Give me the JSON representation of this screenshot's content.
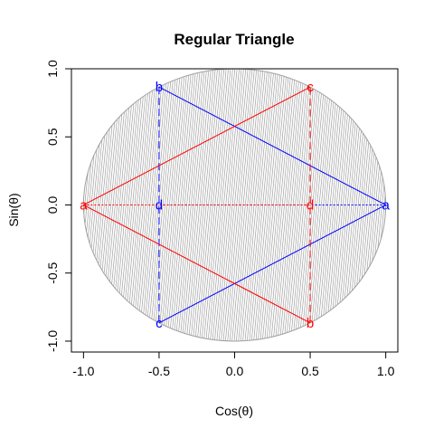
{
  "chart_data": {
    "type": "scatter",
    "title": "Regular Triangle",
    "xlabel": "Cos(θ)",
    "ylabel": "Sin(θ)",
    "xlim": [
      -1.08,
      1.08
    ],
    "ylim": [
      -1.08,
      1.0
    ],
    "xticks": [
      -1.0,
      -0.5,
      0.0,
      0.5,
      1.0
    ],
    "xtick_labels": [
      "-1.0",
      "-0.5",
      "0.0",
      "0.5",
      "1.0"
    ],
    "yticks": [
      -1.0,
      -0.5,
      0.0,
      0.5,
      1.0
    ],
    "ytick_labels": [
      "-1.0",
      "-0.5",
      "0.0",
      "0.5",
      "1.0"
    ],
    "grid": false,
    "unit_circle": {
      "center": [
        0,
        0
      ],
      "radius": 1,
      "fill": "hatched",
      "color": "#a0a0a0"
    },
    "series": [
      {
        "color": "#0000ff",
        "points": [
          {
            "label": "a",
            "x": 1.0,
            "y": 0.0
          },
          {
            "label": "b",
            "x": -0.5,
            "y": 0.866
          },
          {
            "label": "c",
            "x": -0.5,
            "y": -0.866
          },
          {
            "label": "d",
            "x": -0.5,
            "y": 0.0
          }
        ]
      },
      {
        "color": "#ff0000",
        "points": [
          {
            "label": "a",
            "x": -1.0,
            "y": 0.0
          },
          {
            "label": "b",
            "x": 0.5,
            "y": -0.866
          },
          {
            "label": "c",
            "x": 0.5,
            "y": 0.866
          },
          {
            "label": "d",
            "x": 0.5,
            "y": 0.0
          }
        ]
      }
    ]
  }
}
